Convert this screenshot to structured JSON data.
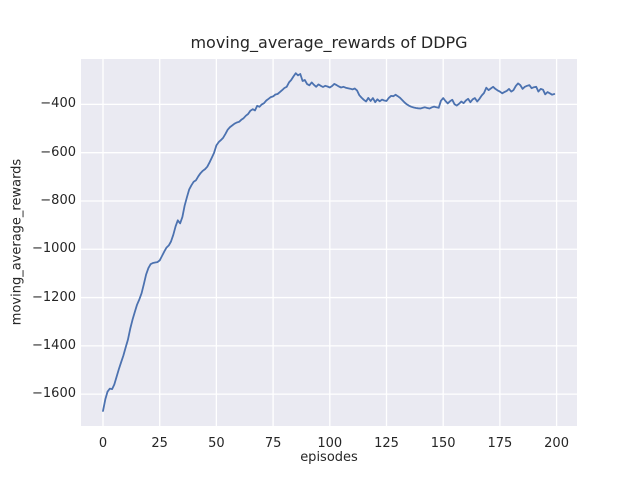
{
  "chart_data": {
    "type": "line",
    "title": "moving_average_rewards of DDPG",
    "xlabel": "episodes",
    "ylabel": "moving_average_rewards",
    "legend": null,
    "grid": true,
    "style": "seaborn-darkgrid",
    "colors": {
      "line": "#4c72b0",
      "axes_background": "#eaeaf2",
      "grid": "#ffffff",
      "text": "#262626",
      "figure_background": "#ffffff"
    },
    "xlim": [
      -9.7,
      209.0
    ],
    "ylim": [
      -1732,
      -212
    ],
    "x_ticks": [
      0,
      25,
      50,
      75,
      100,
      125,
      150,
      175,
      200
    ],
    "x_tick_labels": [
      "0",
      "25",
      "50",
      "75",
      "100",
      "125",
      "150",
      "175",
      "200"
    ],
    "y_ticks": [
      -400,
      -600,
      -800,
      -1000,
      -1200,
      -1400,
      -1600
    ],
    "y_tick_labels": [
      "−400",
      "−600",
      "−800",
      "−1000",
      "−1200",
      "−1400",
      "−1600"
    ],
    "series": [
      {
        "name": "moving_average_rewards",
        "x_start": 0,
        "x_step": 1,
        "values": [
          -1670,
          -1622,
          -1590,
          -1577,
          -1579,
          -1560,
          -1528,
          -1496,
          -1468,
          -1440,
          -1406,
          -1375,
          -1330,
          -1292,
          -1260,
          -1230,
          -1208,
          -1182,
          -1145,
          -1105,
          -1078,
          -1062,
          -1057,
          -1055,
          -1053,
          -1046,
          -1028,
          -1010,
          -993,
          -984,
          -968,
          -940,
          -905,
          -880,
          -893,
          -866,
          -820,
          -785,
          -752,
          -735,
          -720,
          -714,
          -698,
          -685,
          -675,
          -668,
          -658,
          -640,
          -620,
          -600,
          -570,
          -556,
          -548,
          -538,
          -522,
          -505,
          -494,
          -487,
          -480,
          -475,
          -472,
          -464,
          -457,
          -447,
          -440,
          -426,
          -420,
          -425,
          -406,
          -410,
          -400,
          -395,
          -384,
          -377,
          -370,
          -367,
          -359,
          -357,
          -349,
          -341,
          -332,
          -327,
          -309,
          -299,
          -284,
          -271,
          -280,
          -274,
          -303,
          -299,
          -316,
          -321,
          -309,
          -319,
          -327,
          -317,
          -323,
          -328,
          -323,
          -326,
          -330,
          -324,
          -315,
          -320,
          -326,
          -330,
          -327,
          -331,
          -333,
          -335,
          -338,
          -334,
          -342,
          -362,
          -372,
          -381,
          -388,
          -373,
          -386,
          -374,
          -391,
          -379,
          -387,
          -380,
          -384,
          -386,
          -373,
          -365,
          -366,
          -360,
          -366,
          -373,
          -383,
          -392,
          -400,
          -406,
          -410,
          -413,
          -415,
          -416,
          -417,
          -414,
          -412,
          -415,
          -417,
          -412,
          -409,
          -412,
          -414,
          -385,
          -374,
          -386,
          -396,
          -387,
          -381,
          -399,
          -405,
          -397,
          -388,
          -395,
          -384,
          -377,
          -391,
          -379,
          -374,
          -388,
          -377,
          -363,
          -353,
          -331,
          -341,
          -334,
          -327,
          -336,
          -342,
          -347,
          -354,
          -349,
          -344,
          -336,
          -347,
          -341,
          -324,
          -313,
          -320,
          -336,
          -327,
          -323,
          -320,
          -333,
          -329,
          -327,
          -347,
          -336,
          -339,
          -358,
          -349,
          -354,
          -360,
          -357
        ]
      }
    ]
  }
}
